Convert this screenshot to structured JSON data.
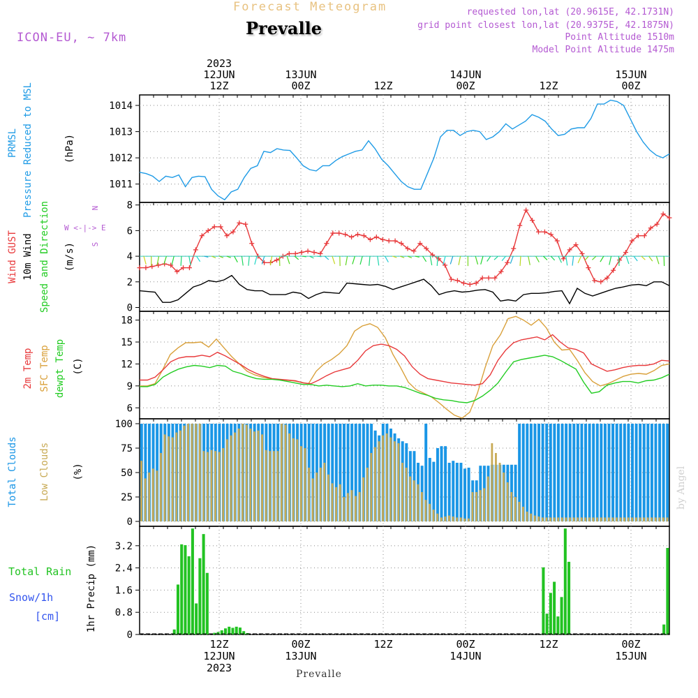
{
  "header": {
    "title_faded": "Forecast Meteogram",
    "location": "Prevalle",
    "model": "ICON-EU, ~ 7km",
    "requested_point": "requested lon,lat (20.9615E, 42.1731N)",
    "grid_point": "grid point closest lon,lat (20.9375E, 42.1875N)",
    "point_altitude": "Point Altitude 1510m",
    "model_altitude": "Model Point Altitude 1475m",
    "footer_location": "Prevalle",
    "watermark": "by Angel"
  },
  "colors": {
    "pressure": "#1f9be6",
    "gust": "#e8383a",
    "wind": "#000000",
    "temp2m": "#e8383a",
    "sfc_temp": "#d9a03a",
    "dewpt": "#22cc22",
    "total_clouds": "#1a96e6",
    "low_clouds": "#c8aa55",
    "rain": "#22c322",
    "snow": "#3355ee",
    "title_faded": "#e8c280",
    "meta_purple": "#b45ad2"
  },
  "chart_data": [
    {
      "id": "pressure",
      "type": "line",
      "ylabels": [
        "PRMSL",
        "Pressure Reduced to MSL",
        "(hPa)"
      ],
      "ylim": [
        1010.3,
        1014.4
      ],
      "yticks": [
        1011,
        1012,
        1013,
        1014
      ],
      "grid": true,
      "series": [
        {
          "name": "PRMSL",
          "values": [
            1011.45,
            1011.4,
            1011.3,
            1011.1,
            1011.3,
            1011.25,
            1011.35,
            1010.9,
            1011.25,
            1011.3,
            1011.28,
            1010.8,
            1010.55,
            1010.4,
            1010.7,
            1010.8,
            1011.25,
            1011.6,
            1011.7,
            1012.25,
            1012.2,
            1012.35,
            1012.3,
            1012.28,
            1012.0,
            1011.7,
            1011.55,
            1011.5,
            1011.7,
            1011.7,
            1011.9,
            1012.05,
            1012.15,
            1012.25,
            1012.3,
            1012.65,
            1012.35,
            1011.95,
            1011.7,
            1011.4,
            1011.1,
            1010.9,
            1010.8,
            1010.8,
            1011.4,
            1012.0,
            1012.8,
            1013.05,
            1013.05,
            1012.85,
            1013.0,
            1013.05,
            1013.0,
            1012.7,
            1012.8,
            1013.0,
            1013.3,
            1013.1,
            1013.25,
            1013.4,
            1013.65,
            1013.55,
            1013.4,
            1013.1,
            1012.85,
            1012.9,
            1013.1,
            1013.15,
            1013.15,
            1013.5,
            1014.05,
            1014.05,
            1014.2,
            1014.15,
            1014.0,
            1013.5,
            1013.0,
            1012.6,
            1012.3,
            1012.1,
            1012.0,
            1012.15
          ]
        }
      ]
    },
    {
      "id": "wind",
      "type": "line",
      "ylabels": [
        "Wind GUST",
        "10m Wind",
        "Speed and Direction",
        "(m/s)"
      ],
      "compass": [
        "N",
        "W <-|-> E",
        "S"
      ],
      "ylim": [
        -0.3,
        8.2
      ],
      "yticks": [
        0,
        2,
        4,
        6,
        8
      ],
      "grid": true,
      "barb_level": 4.0,
      "series": [
        {
          "name": "Wind GUST",
          "values": [
            3.1,
            3.1,
            3.2,
            3.3,
            3.4,
            3.3,
            2.8,
            3.1,
            3.1,
            4.5,
            5.6,
            6.0,
            6.3,
            6.3,
            5.6,
            5.9,
            6.6,
            6.5,
            5.0,
            4.0,
            3.5,
            3.5,
            3.7,
            4.0,
            4.2,
            4.2,
            4.3,
            4.4,
            4.3,
            4.2,
            5.0,
            5.8,
            5.8,
            5.7,
            5.5,
            5.7,
            5.6,
            5.3,
            5.5,
            5.3,
            5.2,
            5.2,
            5.0,
            4.6,
            4.4,
            5.0,
            4.6,
            4.1,
            3.8,
            3.3,
            2.2,
            2.1,
            1.9,
            1.8,
            1.9,
            2.3,
            2.3,
            2.3,
            2.8,
            3.5,
            4.6,
            6.4,
            7.6,
            6.8,
            5.9,
            5.9,
            5.7,
            5.2,
            3.8,
            4.5,
            4.9,
            4.2,
            3.1,
            2.1,
            2.0,
            2.3,
            2.9,
            3.7,
            4.3,
            5.2,
            5.6,
            5.6,
            6.2,
            6.5,
            7.3,
            7.0
          ]
        },
        {
          "name": "10m Wind",
          "values": [
            1.3,
            1.25,
            1.2,
            0.4,
            0.4,
            0.6,
            1.1,
            1.6,
            1.8,
            2.1,
            2.0,
            2.15,
            2.5,
            1.8,
            1.4,
            1.3,
            1.3,
            1.0,
            1.0,
            1.0,
            1.2,
            1.1,
            0.7,
            1.0,
            1.2,
            1.15,
            1.1,
            1.9,
            1.85,
            1.8,
            1.75,
            1.8,
            1.65,
            1.4,
            1.6,
            1.8,
            2.0,
            2.2,
            1.7,
            1.0,
            1.2,
            1.3,
            1.2,
            1.25,
            1.35,
            1.4,
            1.2,
            0.5,
            0.6,
            0.5,
            1.0,
            1.1,
            1.1,
            1.15,
            1.25,
            1.3,
            0.3,
            1.5,
            1.1,
            0.9,
            1.1,
            1.3,
            1.5,
            1.6,
            1.75,
            1.8,
            1.7,
            2.0,
            2.0,
            1.7
          ]
        }
      ]
    },
    {
      "id": "temperature",
      "type": "line",
      "ylabels": [
        "2m Temp",
        "SFC Temp",
        "dewpt Temp",
        "(C)"
      ],
      "ylim": [
        4.5,
        19.2
      ],
      "yticks": [
        6,
        9,
        12,
        15,
        18
      ],
      "grid": true,
      "series": [
        {
          "name": "2m Temp",
          "values": [
            9.8,
            9.8,
            10.2,
            11.2,
            12.3,
            12.8,
            13.0,
            13.0,
            13.2,
            13.0,
            13.6,
            13.1,
            12.5,
            11.9,
            11.2,
            10.7,
            10.3,
            10.0,
            9.9,
            9.8,
            9.7,
            9.4,
            9.3,
            9.8,
            10.4,
            10.9,
            11.2,
            11.5,
            12.5,
            13.8,
            14.5,
            14.7,
            14.5,
            14.0,
            13.1,
            11.6,
            10.6,
            10.0,
            9.8,
            9.6,
            9.4,
            9.3,
            9.2,
            9.1,
            9.3,
            10.5,
            12.5,
            13.9,
            14.9,
            15.3,
            15.5,
            15.7,
            15.3,
            16.0,
            15.0,
            14.2,
            14.0,
            13.5,
            12.0,
            11.5,
            11.0,
            11.2,
            11.5,
            11.7,
            11.8,
            11.8,
            12.0,
            12.5,
            12.4
          ]
        },
        {
          "name": "SFC Temp",
          "values": [
            9.0,
            9.0,
            9.3,
            11.2,
            13.3,
            14.2,
            14.9,
            14.9,
            15.0,
            14.3,
            15.4,
            14.2,
            13.0,
            12.0,
            11.0,
            10.5,
            10.2,
            10.0,
            9.9,
            9.8,
            9.7,
            9.5,
            9.3,
            11.0,
            12.0,
            12.6,
            13.4,
            14.5,
            16.5,
            17.2,
            17.5,
            17.0,
            15.6,
            13.3,
            11.5,
            9.5,
            8.5,
            8.0,
            7.5,
            6.7,
            5.8,
            5.0,
            4.6,
            5.4,
            8.0,
            11.5,
            14.5,
            16.0,
            18.2,
            18.5,
            18.0,
            17.3,
            18.1,
            16.9,
            15.0,
            13.9,
            14.0,
            12.5,
            10.8,
            9.6,
            9.0,
            9.3,
            9.8,
            10.3,
            10.6,
            10.7,
            10.6,
            11.1,
            11.8,
            12.0
          ]
        },
        {
          "name": "dewpt Temp",
          "values": [
            8.9,
            8.9,
            9.2,
            10.2,
            10.8,
            11.3,
            11.6,
            11.8,
            11.7,
            11.5,
            11.8,
            11.7,
            11.0,
            10.7,
            10.3,
            10.0,
            9.9,
            9.9,
            9.8,
            9.6,
            9.4,
            9.2,
            9.2,
            9.0,
            9.1,
            9.0,
            8.9,
            9.0,
            9.3,
            9.0,
            9.1,
            9.1,
            9.0,
            9.0,
            8.8,
            8.4,
            8.0,
            7.7,
            7.3,
            7.1,
            7.0,
            6.8,
            6.7,
            7.0,
            7.6,
            8.4,
            9.4,
            10.9,
            12.3,
            12.6,
            12.8,
            13.0,
            13.2,
            13.0,
            12.5,
            11.9,
            11.3,
            9.5,
            8.0,
            8.2,
            9.1,
            9.4,
            9.6,
            9.6,
            9.4,
            9.7,
            9.8,
            10.1,
            10.6
          ]
        }
      ]
    },
    {
      "id": "clouds",
      "type": "bar",
      "ylabels": [
        "Total Clouds",
        "Low Clouds",
        "(%)"
      ],
      "ylim": [
        -5,
        105
      ],
      "yticks": [
        0,
        25,
        50,
        75,
        100
      ],
      "grid": true,
      "series": [
        {
          "name": "Total Clouds",
          "values": [
            100,
            100,
            100,
            100,
            100,
            100,
            100,
            100,
            100,
            100,
            100,
            100,
            100,
            100,
            100,
            100,
            100,
            100,
            100,
            100,
            100,
            100,
            100,
            100,
            100,
            100,
            100,
            100,
            100,
            100,
            100,
            100,
            100,
            100,
            100,
            100,
            100,
            100,
            100,
            100,
            100,
            100,
            100,
            100,
            100,
            100,
            100,
            100,
            100,
            100,
            100,
            100,
            100,
            100,
            100,
            100,
            100,
            100,
            100,
            100,
            93,
            88,
            100,
            100,
            95,
            90,
            85,
            82,
            80,
            72,
            72,
            60,
            57,
            100,
            65,
            61,
            75,
            77,
            77,
            60,
            62,
            60,
            60,
            54,
            55,
            42,
            42,
            57,
            57,
            57,
            58,
            58,
            58,
            58,
            58,
            58,
            58,
            100,
            100,
            100,
            100,
            100,
            100,
            100,
            100,
            100,
            100,
            100,
            100,
            100,
            100,
            100,
            100,
            100,
            100,
            100,
            100,
            100,
            100,
            100,
            100,
            100,
            100,
            100,
            100,
            100,
            100,
            100,
            100,
            100,
            100,
            100,
            100,
            100,
            100,
            100
          ]
        },
        {
          "name": "Low Clouds",
          "values": [
            62,
            44,
            50,
            54,
            52,
            70,
            89,
            87,
            86,
            91,
            93,
            98,
            100,
            100,
            100,
            100,
            72,
            71,
            73,
            72,
            71,
            75,
            84,
            88,
            91,
            95,
            100,
            99,
            95,
            92,
            93,
            89,
            73,
            72,
            72,
            72,
            100,
            99,
            90,
            85,
            84,
            77,
            75,
            55,
            44,
            50,
            55,
            60,
            48,
            39,
            35,
            38,
            25,
            29,
            32,
            26,
            30,
            45,
            55,
            70,
            76,
            82,
            88,
            90,
            86,
            82,
            80,
            60,
            55,
            46,
            42,
            38,
            30,
            22,
            18,
            12,
            8,
            4,
            5,
            6,
            5,
            4,
            4,
            3,
            3,
            30,
            30,
            32,
            34,
            46,
            80,
            70,
            60,
            50,
            40,
            30,
            25,
            20,
            15,
            10,
            8,
            6,
            5,
            4,
            4,
            4,
            4,
            4,
            4,
            4,
            4,
            4,
            4,
            4,
            4,
            4,
            4,
            4,
            4,
            4,
            4,
            4,
            4,
            4,
            4,
            4,
            4,
            4,
            4,
            4,
            4,
            4,
            4,
            4,
            4,
            4
          ]
        }
      ]
    },
    {
      "id": "precip",
      "type": "bar",
      "ylabels": [
        "Total Rain",
        "Snow/1h",
        "[cm]",
        "1hr Precip (mm)"
      ],
      "ylim": [
        0,
        3.9
      ],
      "yticks": [
        0,
        0.8,
        1.6,
        2.4,
        3.2
      ],
      "tick_labels": [
        "0",
        "0.8",
        "1.6",
        "2.4",
        "3.2"
      ],
      "grid": true,
      "series": [
        {
          "name": "Total Rain",
          "values": [
            0,
            0,
            0,
            0,
            0,
            0,
            0,
            0,
            0,
            0.18,
            1.8,
            3.25,
            3.22,
            2.82,
            3.82,
            1.12,
            2.75,
            3.62,
            2.22,
            0,
            0.06,
            0.09,
            0.15,
            0.22,
            0.28,
            0.24,
            0.28,
            0.25,
            0.12,
            0.05,
            0,
            0,
            0,
            0,
            0,
            0,
            0,
            0,
            0,
            0,
            0,
            0,
            0,
            0,
            0,
            0,
            0,
            0,
            0,
            0,
            0,
            0,
            0,
            0,
            0,
            0,
            0,
            0,
            0,
            0,
            0,
            0,
            0,
            0,
            0,
            0,
            0,
            0,
            0,
            0,
            0,
            0,
            0,
            0,
            0,
            0,
            0,
            0,
            0,
            0,
            0,
            0,
            0,
            0,
            0,
            0,
            0,
            0,
            0,
            0,
            0,
            0,
            0,
            0,
            0,
            0,
            0,
            0,
            0,
            0,
            0,
            0,
            0,
            0,
            0,
            0,
            0,
            0,
            0,
            0,
            2.42,
            0.75,
            1.5,
            1.9,
            0.65,
            1.35,
            3.82,
            2.62,
            0,
            0,
            0,
            0,
            0,
            0,
            0,
            0,
            0,
            0,
            0,
            0,
            0,
            0,
            0,
            0,
            0,
            0,
            0,
            0,
            0,
            0,
            0,
            0,
            0,
            0.36,
            3.12
          ]
        }
      ]
    }
  ],
  "time_axis": {
    "top_ticks": [
      {
        "lines": [
          "2023",
          "12JUN",
          "12Z"
        ]
      },
      {
        "lines": [
          "13JUN",
          "00Z"
        ]
      },
      {
        "lines": [
          "12Z"
        ]
      },
      {
        "lines": [
          "14JUN",
          "00Z"
        ]
      },
      {
        "lines": [
          "12Z"
        ]
      },
      {
        "lines": [
          "15JUN",
          "00Z"
        ]
      }
    ],
    "bottom_ticks": [
      {
        "lines": [
          "12Z",
          "12JUN",
          "2023"
        ]
      },
      {
        "lines": [
          "00Z",
          "13JUN"
        ]
      },
      {
        "lines": [
          "12Z"
        ]
      },
      {
        "lines": [
          "00Z",
          "14JUN"
        ]
      },
      {
        "lines": [
          "12Z"
        ]
      },
      {
        "lines": [
          "00Z",
          "15JUN"
        ]
      }
    ]
  }
}
